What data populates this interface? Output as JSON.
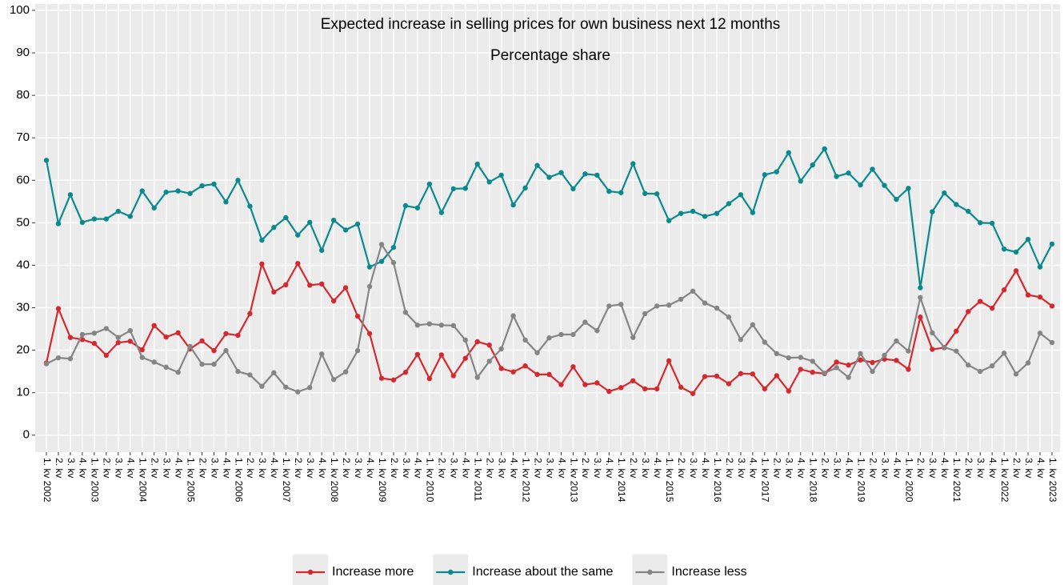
{
  "chart_data": {
    "type": "line",
    "title": "Expected increase in selling prices for own business next 12 months",
    "subtitle": "Percentage share",
    "categories": [
      "1. kv 2002",
      "2. kv",
      "3. kv",
      "4. kv",
      "1. kv 2003",
      "2. kv",
      "3. kv",
      "4. kv",
      "1. kv 2004",
      "2. kv",
      "3. kv",
      "4. kv",
      "1. kv 2005",
      "2. kv",
      "3. kv",
      "4. kv",
      "1. kv 2006",
      "2. kv",
      "3. kv",
      "4. kv",
      "1. kv 2007",
      "2. kv",
      "3. kv",
      "4. kv",
      "1. kv 2008",
      "2. kv",
      "3. kv",
      "4. kv",
      "1. kv 2009",
      "2. kv",
      "3. kv",
      "4. kv",
      "1. kv 2010",
      "2. kv",
      "3. kv",
      "4. kv",
      "1. kv 2011",
      "2. kv",
      "3. kv",
      "4. kv",
      "1. kv 2012",
      "2. kv",
      "3. kv",
      "4. kv",
      "1. kv 2013",
      "2. kv",
      "3. kv",
      "4. kv",
      "1. kv 2014",
      "2. kv",
      "3. kv",
      "4. kv",
      "1. kv 2015",
      "2. kv",
      "3. kv",
      "4. kv",
      "1. kv 2016",
      "2. kv",
      "3. kv",
      "4. kv",
      "1. kv 2017",
      "2. kv",
      "3. kv",
      "4. kv",
      "1. kv 2018",
      "2. kv",
      "3. kv",
      "4. kv",
      "1. kv 2019",
      "2. kv",
      "3. kv",
      "4. kv",
      "1. kv 2020",
      "2. kv",
      "3. kv",
      "4. kv",
      "1. kv 2021",
      "2. kv",
      "3. kv",
      "4. kv",
      "1. kv 2022",
      "2. kv",
      "3. kv",
      "4. kv",
      "1. kv 2023"
    ],
    "series": [
      {
        "name": "Increase more",
        "color": "#d42a2f",
        "values": [
          17.0,
          29.8,
          23.0,
          22.5,
          21.6,
          18.8,
          21.8,
          22.1,
          20.1,
          25.8,
          23.1,
          24.1,
          20.3,
          22.2,
          19.9,
          23.9,
          23.5,
          28.6,
          40.3,
          33.7,
          35.4,
          40.4,
          35.3,
          35.6,
          31.6,
          34.7,
          28.0,
          23.9,
          13.4,
          13.0,
          14.8,
          19.0,
          13.3,
          18.9,
          14.0,
          18.1,
          22.0,
          21.2,
          15.7,
          14.9,
          16.3,
          14.3,
          14.3,
          11.9,
          16.1,
          11.9,
          12.3,
          10.3,
          11.2,
          12.8,
          10.9,
          10.9,
          17.5,
          11.3,
          9.8,
          13.8,
          13.9,
          12.1,
          14.5,
          14.4,
          10.9,
          14.0,
          10.4,
          15.5,
          14.8,
          14.5,
          17.2,
          16.5,
          17.7,
          17.1,
          17.9,
          17.6,
          15.5,
          27.8,
          20.2,
          20.6,
          24.5,
          29.1,
          31.5,
          29.9,
          34.2,
          38.7,
          33.0,
          32.5,
          30.4
        ]
      },
      {
        "name": "Increase about the same",
        "color": "#0b8a8e",
        "values": [
          64.7,
          49.8,
          56.6,
          50.1,
          50.9,
          50.9,
          52.7,
          51.5,
          57.5,
          53.5,
          57.2,
          57.5,
          56.9,
          58.7,
          59.1,
          54.9,
          60.0,
          53.9,
          45.9,
          48.9,
          51.2,
          47.1,
          50.1,
          43.5,
          50.6,
          48.3,
          49.7,
          39.6,
          40.9,
          44.2,
          54.0,
          53.5,
          59.1,
          52.4,
          58.0,
          58.1,
          63.8,
          59.6,
          61.2,
          54.2,
          58.2,
          63.5,
          60.7,
          61.8,
          58.0,
          61.5,
          61.2,
          57.4,
          57.1,
          63.9,
          56.9,
          56.8,
          50.5,
          52.2,
          52.7,
          51.5,
          52.2,
          54.5,
          56.6,
          52.4,
          61.3,
          62.0,
          66.5,
          59.8,
          63.6,
          67.4,
          60.9,
          61.7,
          58.9,
          62.6,
          58.8,
          55.5,
          58.1,
          34.7,
          52.6,
          57.0,
          54.3,
          52.7,
          50.0,
          49.9,
          43.8,
          43.1,
          46.1,
          39.6,
          45.0
        ]
      },
      {
        "name": "Increase less",
        "color": "#858585",
        "values": [
          16.8,
          18.2,
          18.0,
          23.7,
          24.0,
          25.1,
          23.0,
          24.6,
          18.3,
          17.2,
          16.0,
          14.8,
          20.9,
          16.7,
          16.7,
          19.9,
          15.0,
          14.2,
          11.5,
          14.7,
          11.3,
          10.2,
          11.2,
          19.1,
          13.1,
          14.9,
          19.9,
          35.0,
          44.9,
          40.6,
          28.9,
          25.9,
          26.2,
          25.9,
          25.8,
          22.4,
          13.6,
          17.4,
          20.3,
          28.1,
          22.4,
          19.4,
          22.9,
          23.7,
          23.7,
          26.6,
          24.6,
          30.4,
          30.8,
          23.0,
          28.6,
          30.4,
          30.6,
          32.0,
          33.9,
          31.1,
          29.9,
          27.8,
          22.5,
          26.0,
          21.9,
          19.2,
          18.2,
          18.3,
          17.4,
          14.6,
          15.9,
          13.6,
          19.2,
          15.0,
          18.8,
          22.2,
          19.8,
          32.4,
          24.1,
          20.7,
          19.8,
          16.5,
          15.0,
          16.3,
          19.3,
          14.4,
          17.0,
          24.0,
          21.8
        ]
      }
    ],
    "ylim": [
      -4,
      101.5
    ],
    "yticks": [
      0,
      10,
      20,
      30,
      40,
      50,
      60,
      70,
      80,
      90,
      100
    ],
    "grid": true,
    "legend": "bottom"
  }
}
